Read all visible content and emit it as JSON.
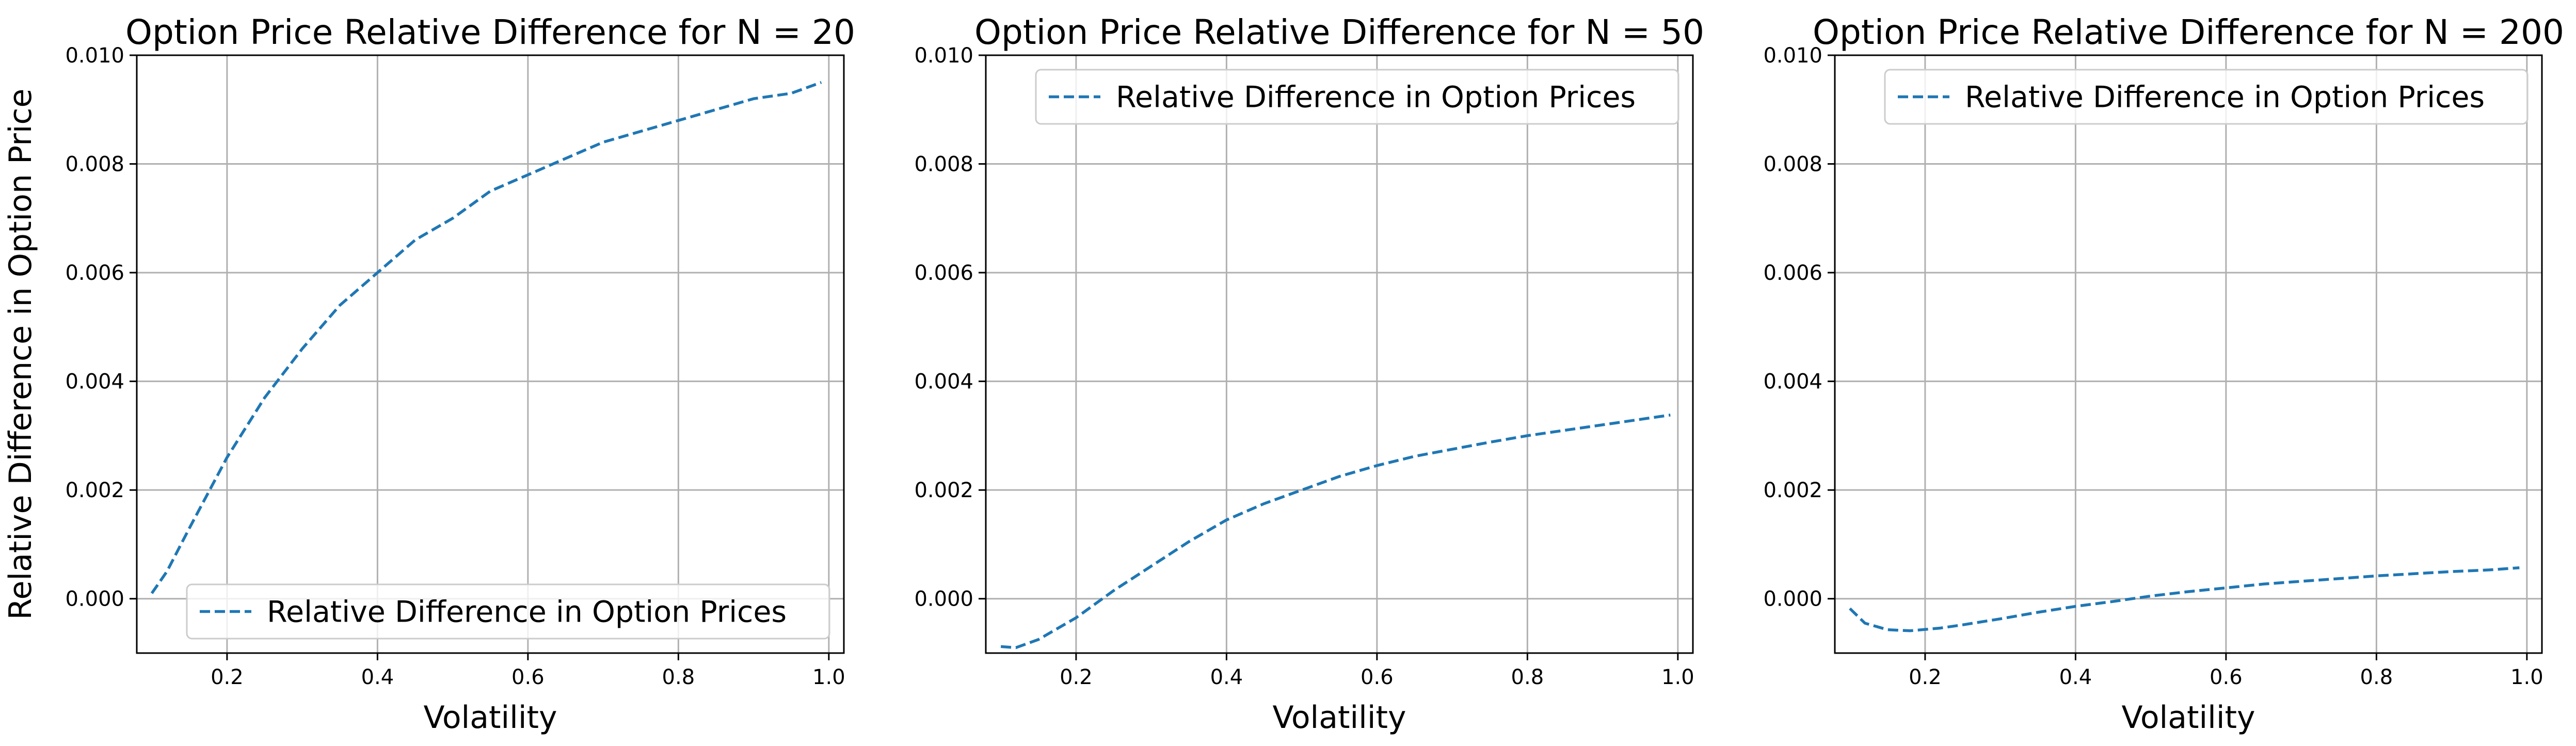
{
  "chart_data": [
    {
      "type": "line",
      "title": "Option Price Relative Difference for N = 20",
      "xlabel": "Volatility",
      "ylabel": "Relative Difference in Option Price",
      "xlim": [
        0.08,
        1.02
      ],
      "ylim": [
        -0.001,
        0.01
      ],
      "xticks": [
        "0.2",
        "0.4",
        "0.6",
        "0.8",
        "1.0"
      ],
      "yticks": [
        "0.000",
        "0.002",
        "0.004",
        "0.006",
        "0.008",
        "0.010"
      ],
      "grid": true,
      "legend_position": "lower right",
      "series": [
        {
          "name": "Relative Difference in Option Prices",
          "color": "#1f77b4",
          "style": "dashed",
          "x": [
            0.1,
            0.12,
            0.15,
            0.2,
            0.25,
            0.3,
            0.35,
            0.4,
            0.45,
            0.5,
            0.55,
            0.6,
            0.65,
            0.7,
            0.75,
            0.8,
            0.85,
            0.9,
            0.95,
            0.99
          ],
          "y": [
            0.0001,
            0.0005,
            0.0013,
            0.0026,
            0.0037,
            0.0046,
            0.0054,
            0.006,
            0.0066,
            0.007,
            0.0075,
            0.0078,
            0.0081,
            0.0084,
            0.0086,
            0.0088,
            0.009,
            0.0092,
            0.0093,
            0.0095
          ]
        }
      ]
    },
    {
      "type": "line",
      "title": "Option Price Relative Difference for N = 50",
      "xlabel": "Volatility",
      "ylabel": "",
      "xlim": [
        0.08,
        1.02
      ],
      "ylim": [
        -0.001,
        0.01
      ],
      "xticks": [
        "0.2",
        "0.4",
        "0.6",
        "0.8",
        "1.0"
      ],
      "yticks": [
        "0.000",
        "0.002",
        "0.004",
        "0.006",
        "0.008",
        "0.010"
      ],
      "grid": true,
      "legend_position": "upper right",
      "series": [
        {
          "name": "Relative Difference in Option Prices",
          "color": "#1f77b4",
          "style": "dashed",
          "x": [
            0.1,
            0.12,
            0.15,
            0.2,
            0.25,
            0.3,
            0.35,
            0.4,
            0.45,
            0.5,
            0.55,
            0.6,
            0.65,
            0.7,
            0.75,
            0.8,
            0.85,
            0.9,
            0.95,
            0.99
          ],
          "y": [
            -0.00088,
            -0.0009,
            -0.00075,
            -0.00035,
            0.00015,
            0.0006,
            0.00105,
            0.00145,
            0.00175,
            0.002,
            0.00225,
            0.00245,
            0.00262,
            0.00275,
            0.00288,
            0.003,
            0.0031,
            0.0032,
            0.0033,
            0.00338
          ]
        }
      ]
    },
    {
      "type": "line",
      "title": "Option Price Relative Difference for N = 200",
      "xlabel": "Volatility",
      "ylabel": "",
      "xlim": [
        0.08,
        1.02
      ],
      "ylim": [
        -0.001,
        0.01
      ],
      "xticks": [
        "0.2",
        "0.4",
        "0.6",
        "0.8",
        "1.0"
      ],
      "yticks": [
        "0.000",
        "0.002",
        "0.004",
        "0.006",
        "0.008",
        "0.010"
      ],
      "grid": true,
      "legend_position": "upper right",
      "series": [
        {
          "name": "Relative Difference in Option Prices",
          "color": "#1f77b4",
          "style": "dashed",
          "x": [
            0.1,
            0.12,
            0.15,
            0.18,
            0.22,
            0.25,
            0.3,
            0.35,
            0.4,
            0.45,
            0.5,
            0.55,
            0.6,
            0.65,
            0.7,
            0.75,
            0.8,
            0.85,
            0.9,
            0.95,
            0.99
          ],
          "y": [
            -0.00018,
            -0.00045,
            -0.00057,
            -0.00059,
            -0.00054,
            -0.00048,
            -0.00037,
            -0.00025,
            -0.00014,
            -5e-05,
            5e-05,
            0.00013,
            0.0002,
            0.00027,
            0.00032,
            0.00037,
            0.00042,
            0.00046,
            0.0005,
            0.00053,
            0.00057
          ]
        }
      ]
    }
  ]
}
